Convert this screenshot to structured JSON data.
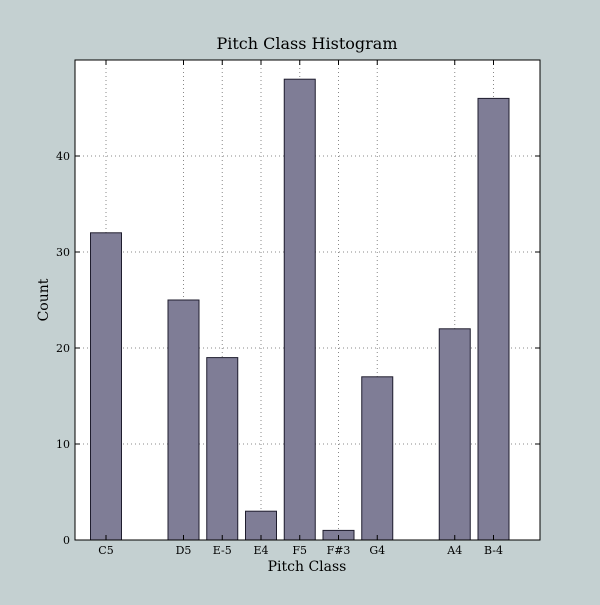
{
  "chart_data": {
    "type": "bar",
    "title": "Pitch Class Histogram",
    "xlabel": "Pitch Class",
    "ylabel": "Count",
    "ylim": [
      0,
      50
    ],
    "yticks": [
      0,
      10,
      20,
      30,
      40
    ],
    "grid": true,
    "bars": [
      {
        "label": "C5",
        "x": 0,
        "value": 32
      },
      {
        "label": "D5",
        "x": 2,
        "value": 25
      },
      {
        "label": "E-5",
        "x": 3,
        "value": 19
      },
      {
        "label": "E4",
        "x": 4,
        "value": 3
      },
      {
        "label": "F5",
        "x": 5,
        "value": 48
      },
      {
        "label": "F#3",
        "x": 6,
        "value": 1
      },
      {
        "label": "G4",
        "x": 7,
        "value": 17
      },
      {
        "label": "A4",
        "x": 9,
        "value": 22
      },
      {
        "label": "B-4",
        "x": 10,
        "value": 46
      }
    ],
    "xlim": [
      -0.4,
      11.6
    ],
    "colors": {
      "bar_fill": "#7f7d96",
      "bar_edge": "#1f1d2e",
      "figure_bg": "#c4d0d1",
      "axes_bg": "#ffffff",
      "grid": "#888888"
    }
  }
}
